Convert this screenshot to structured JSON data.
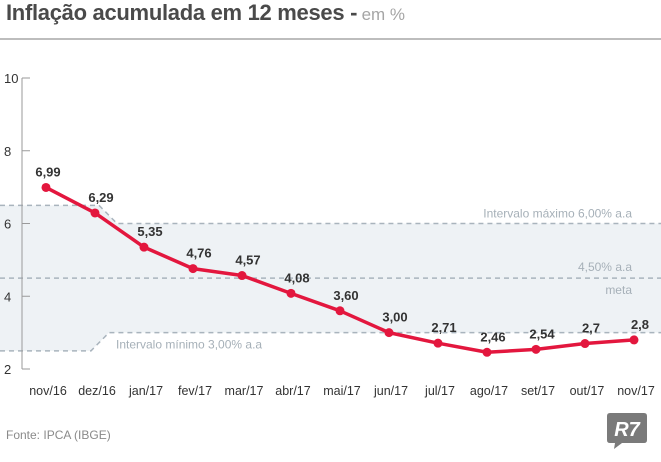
{
  "header": {
    "title": "Inflação acumulada em 12 meses -",
    "unit": "em %"
  },
  "source": "Fonte: IPCA (IBGE)",
  "logo_text": "R7",
  "chart_data": {
    "type": "line",
    "title": "Inflação acumulada em 12 meses - em %",
    "x": [
      "nov/16",
      "dez/16",
      "jan/17",
      "fev/17",
      "mar/17",
      "abr/17",
      "mai/17",
      "jun/17",
      "jul/17",
      "ago/17",
      "set/17",
      "out/17",
      "nov/17"
    ],
    "series": [
      {
        "values": [
          6.99,
          6.29,
          5.35,
          4.76,
          4.57,
          4.08,
          3.6,
          3.0,
          2.71,
          2.46,
          2.54,
          2.7,
          2.8
        ],
        "labels": [
          "6,99",
          "6,29",
          "5,35",
          "4,76",
          "4,57",
          "4,08",
          "3,60",
          "3,00",
          "2,71",
          "2,46",
          "2,54",
          "2,7",
          "2,8"
        ],
        "color": "#e3173e"
      }
    ],
    "ylim": [
      2,
      10
    ],
    "yticks": [
      2,
      4,
      6,
      8,
      10
    ],
    "grid": false,
    "target_band": {
      "max_label": "Intervalo máximo 6,00% a.a",
      "center_label": "4,50% a.a",
      "center_sublabel": "meta",
      "min_label": "Intervalo mínimo 3,00% a.a",
      "upper": [
        6.5,
        6.5,
        6.0,
        6.0,
        6.0,
        6.0,
        6.0,
        6.0,
        6.0,
        6.0,
        6.0,
        6.0,
        6.0
      ],
      "center": [
        4.5,
        4.5,
        4.5,
        4.5,
        4.5,
        4.5,
        4.5,
        4.5,
        4.5,
        4.5,
        4.5,
        4.5,
        4.5
      ],
      "lower": [
        2.5,
        2.5,
        3.0,
        3.0,
        3.0,
        3.0,
        3.0,
        3.0,
        3.0,
        3.0,
        3.0,
        3.0,
        3.0
      ]
    },
    "colors": {
      "band_fill": "#eef2f5",
      "band_line": "#a9b4bd",
      "axis": "#9a9a9a",
      "text": "#333333"
    }
  }
}
